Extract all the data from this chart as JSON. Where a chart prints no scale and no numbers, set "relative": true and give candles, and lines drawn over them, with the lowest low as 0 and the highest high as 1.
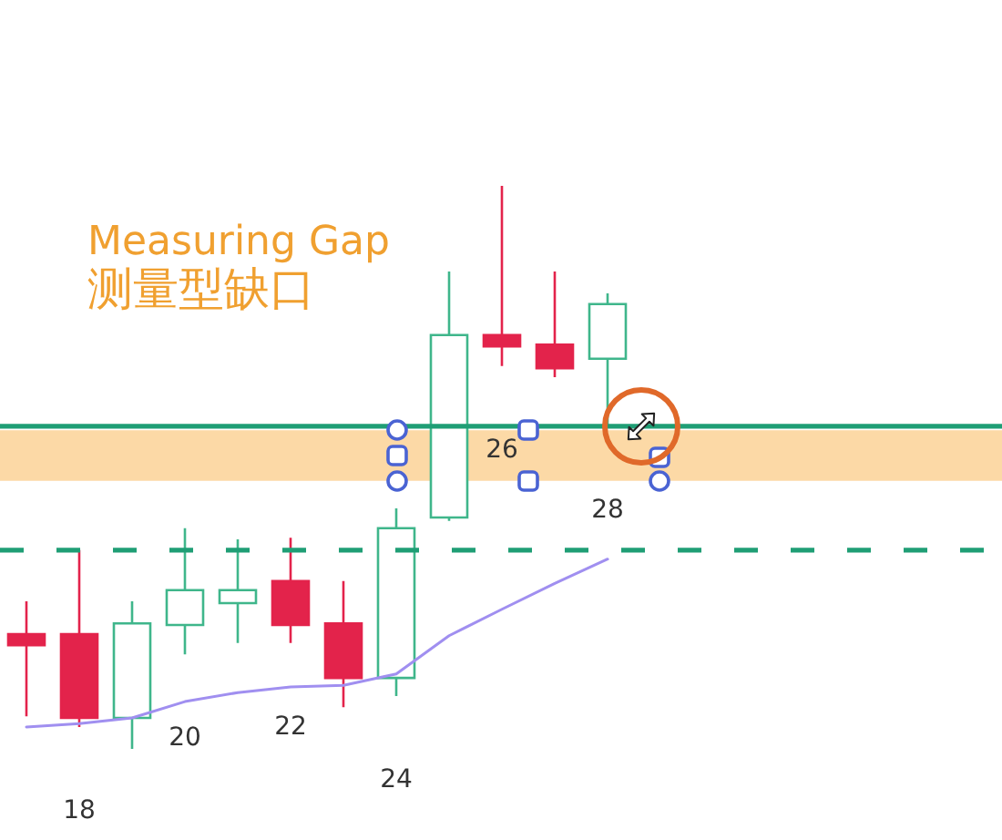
{
  "chart_data": {
    "type": "candlestick",
    "title": "Measuring Gap",
    "subtitle": "测量型缺口",
    "relative": true,
    "categories": [
      null,
      "18",
      null,
      "20",
      null,
      "22",
      null,
      "24",
      null,
      "26",
      null,
      "28"
    ],
    "ohlc": [
      [
        0.204,
        0.262,
        0.058,
        0.184
      ],
      [
        0.204,
        0.353,
        0.039,
        0.055
      ],
      [
        0.055,
        0.262,
        0,
        0.223
      ],
      [
        0.22,
        0.392,
        0.168,
        0.282
      ],
      [
        0.259,
        0.372,
        0.188,
        0.282
      ],
      [
        0.298,
        0.375,
        0.188,
        0.22
      ],
      [
        0.223,
        0.298,
        0.074,
        0.126
      ],
      [
        0.126,
        0.427,
        0.094,
        0.392
      ],
      [
        0.411,
        0.848,
        0.405,
        0.735
      ],
      [
        0.735,
        1,
        0.68,
        0.715
      ],
      [
        0.718,
        0.848,
        0.66,
        0.676
      ],
      [
        0.693,
        0.809,
        0.573,
        0.79
      ]
    ],
    "colors": [
      "#e3234b",
      "#e3234b",
      "#3fb68b",
      "#3fb68b",
      "#3fb68b",
      "#e3234b",
      "#e3234b",
      "#3fb68b",
      "#3fb68b",
      "#e3234b",
      "#e3234b",
      "#3fb68b"
    ],
    "series": [
      {
        "type": "line",
        "color": "#a08ff0",
        "values": [
          0.039,
          0.045,
          0.055,
          0.084,
          0.1,
          0.11,
          0.113,
          0.133,
          0.201,
          0.248,
          0.294,
          0.337
        ]
      }
    ],
    "ref_lines": [
      {
        "axis": "y",
        "value": 0.573,
        "color": "#1f9e75",
        "line_style": "solid"
      },
      {
        "axis": "y",
        "value": 0.353,
        "color": "#1f9e75",
        "line_style": "dashed"
      }
    ],
    "bands": [
      {
        "axis": "y",
        "from": 0.476,
        "to": 0.566,
        "color": "#fcd9a6"
      }
    ]
  }
}
